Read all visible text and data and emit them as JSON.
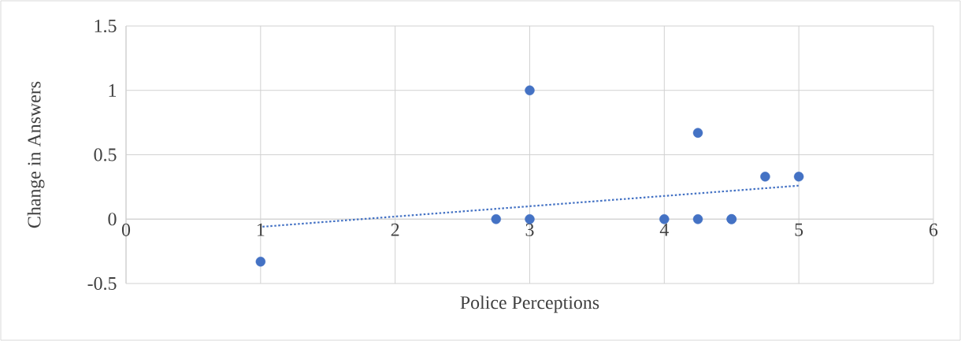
{
  "chart_data": {
    "type": "scatter",
    "xlabel": "Police Perceptions",
    "ylabel": "Change in Answers",
    "xlim": [
      0,
      6
    ],
    "ylim": [
      -0.5,
      1.5
    ],
    "xticks": [
      0,
      1,
      2,
      3,
      4,
      5,
      6
    ],
    "yticks": [
      -0.5,
      0,
      0.5,
      1,
      1.5
    ],
    "grid": true,
    "series": [
      {
        "color": "#4472c4",
        "marker": "circle",
        "x": [
          1,
          2.75,
          3,
          3,
          4,
          4.25,
          4.25,
          4.5,
          4.5,
          4.75,
          5
        ],
        "values": [
          -0.33,
          0,
          0,
          1,
          0,
          0,
          0.67,
          0,
          0,
          0.33,
          0.33
        ]
      },
      {
        "type": "line",
        "color": "#4472c4",
        "line_style": "dotted",
        "marker": "none",
        "x": [
          1,
          5
        ],
        "values": [
          -0.06,
          0.26
        ]
      }
    ]
  }
}
